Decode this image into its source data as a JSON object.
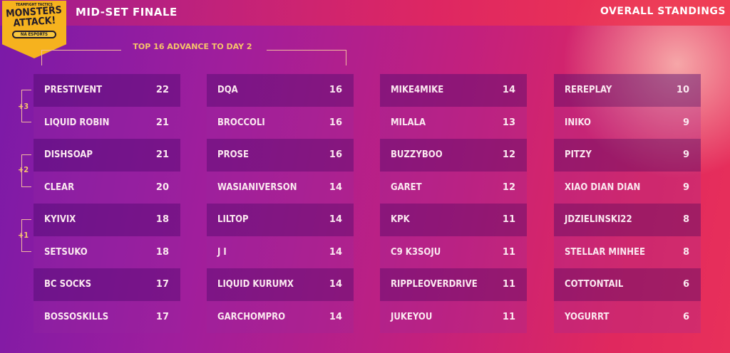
{
  "header": {
    "title": "MID-SET FINALE",
    "right_title": "OVERALL STANDINGS"
  },
  "logo": {
    "line1": "TEAMFIGHT TACTICS",
    "line2": "MONSTERS ATTACK!",
    "line3": "NA ESPORTS"
  },
  "advance_label": "TOP 16 ADVANCE TO DAY 2",
  "brackets": [
    "+3",
    "+2",
    "+1"
  ],
  "columns": [
    [
      {
        "name": "PRESTIVENT",
        "score": "22"
      },
      {
        "name": "LIQUID ROBIN",
        "score": "21"
      },
      {
        "name": "DISHSOAP",
        "score": "21"
      },
      {
        "name": "CLEAR",
        "score": "20"
      },
      {
        "name": "KYIVIX",
        "score": "18"
      },
      {
        "name": "SETSUKO",
        "score": "18"
      },
      {
        "name": "BC SOCKS",
        "score": "17"
      },
      {
        "name": "BOSSOSKILLS",
        "score": "17"
      }
    ],
    [
      {
        "name": "DQA",
        "score": "16"
      },
      {
        "name": "BROCCOLI",
        "score": "16"
      },
      {
        "name": "PROSE",
        "score": "16"
      },
      {
        "name": "WASIANIVERSON",
        "score": "14"
      },
      {
        "name": "LILTOP",
        "score": "14"
      },
      {
        "name": "J I",
        "score": "14"
      },
      {
        "name": "LIQUID KURUMX",
        "score": "14"
      },
      {
        "name": "GARCHOMPRO",
        "score": "14"
      }
    ],
    [
      {
        "name": "MIKE4MIKE",
        "score": "14"
      },
      {
        "name": "MILALA",
        "score": "13"
      },
      {
        "name": "BUZZYBOO",
        "score": "12"
      },
      {
        "name": "GARET",
        "score": "12"
      },
      {
        "name": "KPK",
        "score": "11"
      },
      {
        "name": "C9 K3SOJU",
        "score": "11"
      },
      {
        "name": "RIPPLEOVERDRIVE",
        "score": "11"
      },
      {
        "name": "JUKEYOU",
        "score": "11"
      }
    ],
    [
      {
        "name": "REREPLAY",
        "score": "10"
      },
      {
        "name": "INIKO",
        "score": "9"
      },
      {
        "name": "PITZY",
        "score": "9"
      },
      {
        "name": "XIAO DIAN DIAN",
        "score": "9"
      },
      {
        "name": "JDZIELINSKI22",
        "score": "8"
      },
      {
        "name": "STELLAR MINHEE",
        "score": "8"
      },
      {
        "name": "COTTONTAIL",
        "score": "6"
      },
      {
        "name": "YOGURRT",
        "score": "6"
      }
    ]
  ]
}
